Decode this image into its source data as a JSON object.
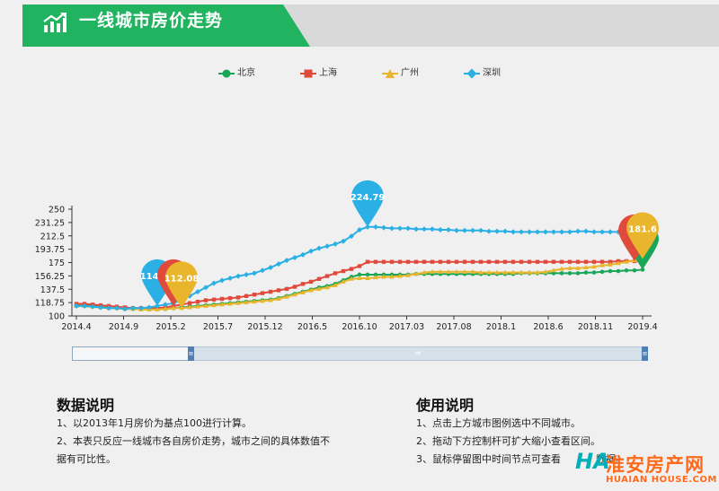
{
  "header": {
    "title": "一线城市房价走势"
  },
  "legend": [
    {
      "name": "北京",
      "color": "#1aa659",
      "marker": "circle"
    },
    {
      "name": "上海",
      "color": "#e04a3c",
      "marker": "square"
    },
    {
      "name": "广州",
      "color": "#e8b52c",
      "marker": "triangle"
    },
    {
      "name": "深圳",
      "color": "#2ab0e4",
      "marker": "diamond"
    }
  ],
  "chart_data": {
    "type": "line",
    "ylim": [
      100,
      250
    ],
    "y_ticks": [
      "100",
      "118.75",
      "137.5",
      "156.25",
      "175",
      "193.75",
      "212.5",
      "231.25",
      "250"
    ],
    "x_tick_labels": [
      "2014.4",
      "2014.9",
      "2015.2",
      "2015.7",
      "2015.12",
      "2016.5",
      "2016.10",
      "2017.03",
      "2017.08",
      "2018.1",
      "2018.6",
      "2018.11",
      "2019.4"
    ],
    "x_range_months": [
      "2014.4",
      "2019.4"
    ],
    "series": [
      {
        "name": "北京",
        "color": "#1aa659",
        "values": [
          115,
          115,
          114,
          113,
          112,
          111,
          110,
          110,
          110,
          110,
          110,
          110,
          111,
          112,
          113,
          114,
          115,
          116,
          117,
          118,
          119,
          120,
          121,
          122,
          123,
          125,
          128,
          131,
          134,
          137,
          140,
          142,
          145,
          150,
          155,
          158,
          158,
          158,
          158,
          158,
          158,
          158,
          159,
          159,
          159,
          159,
          159,
          159,
          159,
          159,
          159,
          159,
          159,
          159,
          159,
          160,
          160,
          160,
          160,
          160,
          160,
          160,
          160,
          161,
          161,
          162,
          163,
          163,
          164,
          164,
          165
        ]
      },
      {
        "name": "上海",
        "color": "#e04a3c",
        "values": [
          117,
          117,
          116,
          115,
          114,
          113,
          112,
          111,
          111,
          111,
          111,
          112,
          114,
          116,
          118,
          120,
          122,
          123,
          124,
          125,
          126,
          128,
          130,
          132,
          134,
          136,
          138,
          141,
          145,
          148,
          152,
          156,
          160,
          163,
          166,
          170,
          176,
          176,
          176,
          176,
          176,
          176,
          176,
          176,
          176,
          176,
          176,
          176,
          176,
          176,
          176,
          176,
          176,
          176,
          176,
          176,
          176,
          176,
          176,
          176,
          176,
          176,
          176,
          176,
          176,
          176,
          176,
          177,
          177,
          177,
          178
        ]
      },
      {
        "name": "广州",
        "color": "#e8b52c",
        "values": [
          114,
          114,
          113,
          112,
          111,
          111,
          110,
          110,
          109,
          109,
          109,
          110,
          111,
          111,
          112,
          113,
          114,
          115,
          116,
          117,
          118,
          119,
          120,
          121,
          122,
          124,
          127,
          130,
          133,
          136,
          138,
          140,
          143,
          148,
          152,
          153,
          153,
          154,
          155,
          155,
          156,
          157,
          159,
          161,
          162,
          162,
          162,
          162,
          162,
          162,
          161,
          161,
          161,
          161,
          161,
          161,
          161,
          161,
          162,
          164,
          166,
          167,
          167,
          168,
          169,
          171,
          172,
          174,
          176,
          178,
          180
        ]
      },
      {
        "name": "深圳",
        "color": "#2ab0e4",
        "values": [
          114,
          114,
          113,
          112,
          111,
          111,
          110,
          111,
          111,
          112,
          114,
          116,
          118,
          122,
          128,
          134,
          140,
          146,
          150,
          153,
          156,
          158,
          160,
          164,
          168,
          173,
          178,
          182,
          186,
          191,
          195,
          198,
          201,
          205,
          212,
          221,
          225,
          225,
          224,
          223,
          223,
          223,
          222,
          222,
          222,
          221,
          221,
          220,
          220,
          220,
          220,
          219,
          219,
          219,
          218,
          218,
          218,
          218,
          218,
          218,
          218,
          218,
          219,
          219,
          218,
          218,
          218,
          218,
          218,
          218,
          218
        ]
      }
    ],
    "pins": [
      {
        "series": "深圳",
        "label": "114.39"
      },
      {
        "series": "上海",
        "label": "1"
      },
      {
        "series": "广州",
        "label": "112.08"
      },
      {
        "series": "深圳",
        "label": "224.79"
      },
      {
        "series": "北京",
        "label": "1"
      },
      {
        "series": "上海",
        "label": "17"
      },
      {
        "series": "广州",
        "label": "181.6"
      }
    ]
  },
  "slider": {
    "handle_label": "≡",
    "mid_label": "="
  },
  "notes": {
    "data_title": "数据说明",
    "data_lines": [
      "1、以2013年1月房价为基点100进行计算。",
      "2、本表只反应一线城市各自房价走势，城市之间的具体数值不",
      "据有可比性。"
    ],
    "usage_title": "使用说明",
    "usage_lines": [
      "1、点击上方城市图例选中不同城市。",
      "2、拖动下方控制杆可扩大缩小查看区间。",
      "3、鼠标停留图中时间节点可查看"
    ],
    "usage_tail": "数据。"
  },
  "watermark": {
    "logo": "HA",
    "text": "淮安房产网",
    "sub": "HUAIAN HOUSE.COM"
  }
}
